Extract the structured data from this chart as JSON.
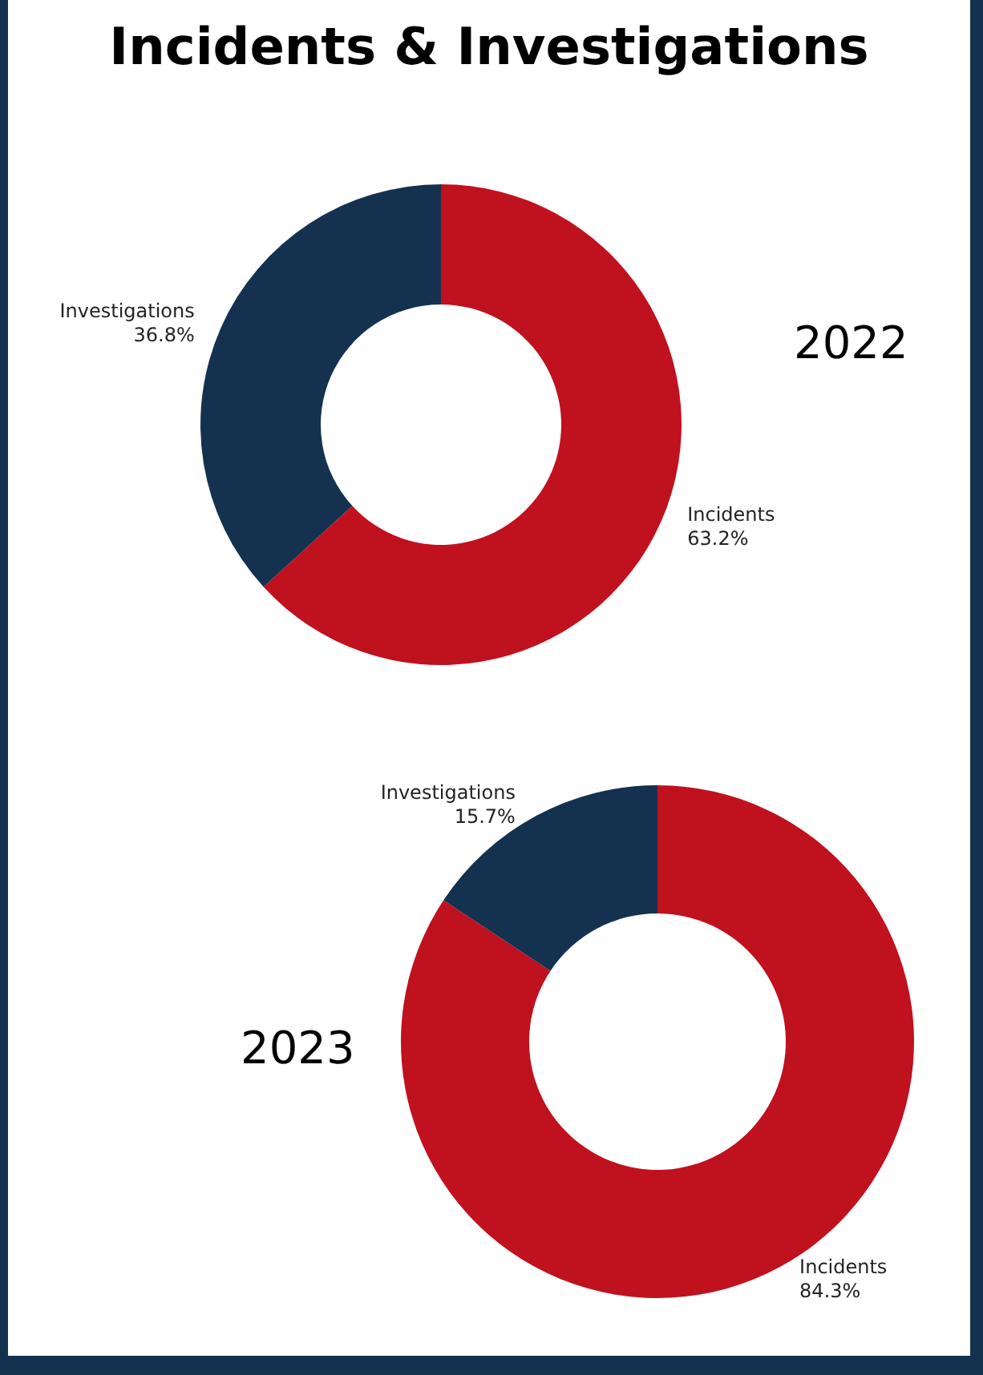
{
  "chart_data": [
    {
      "type": "other",
      "title": "Incidents & Investigations"
    },
    {
      "type": "donut",
      "title": "2022",
      "categories": [
        "Incidents",
        "Investigations"
      ],
      "values": [
        63.2,
        36.8
      ],
      "colors": [
        "#c0111f",
        "#14324f"
      ],
      "value_labels": [
        "63.2%",
        "36.8%"
      ]
    },
    {
      "type": "donut",
      "title": "2023",
      "categories": [
        "Incidents",
        "Investigations"
      ],
      "values": [
        84.3,
        15.7
      ],
      "colors": [
        "#c0111f",
        "#14324f"
      ],
      "value_labels": [
        "84.3%",
        "15.7%"
      ]
    }
  ]
}
